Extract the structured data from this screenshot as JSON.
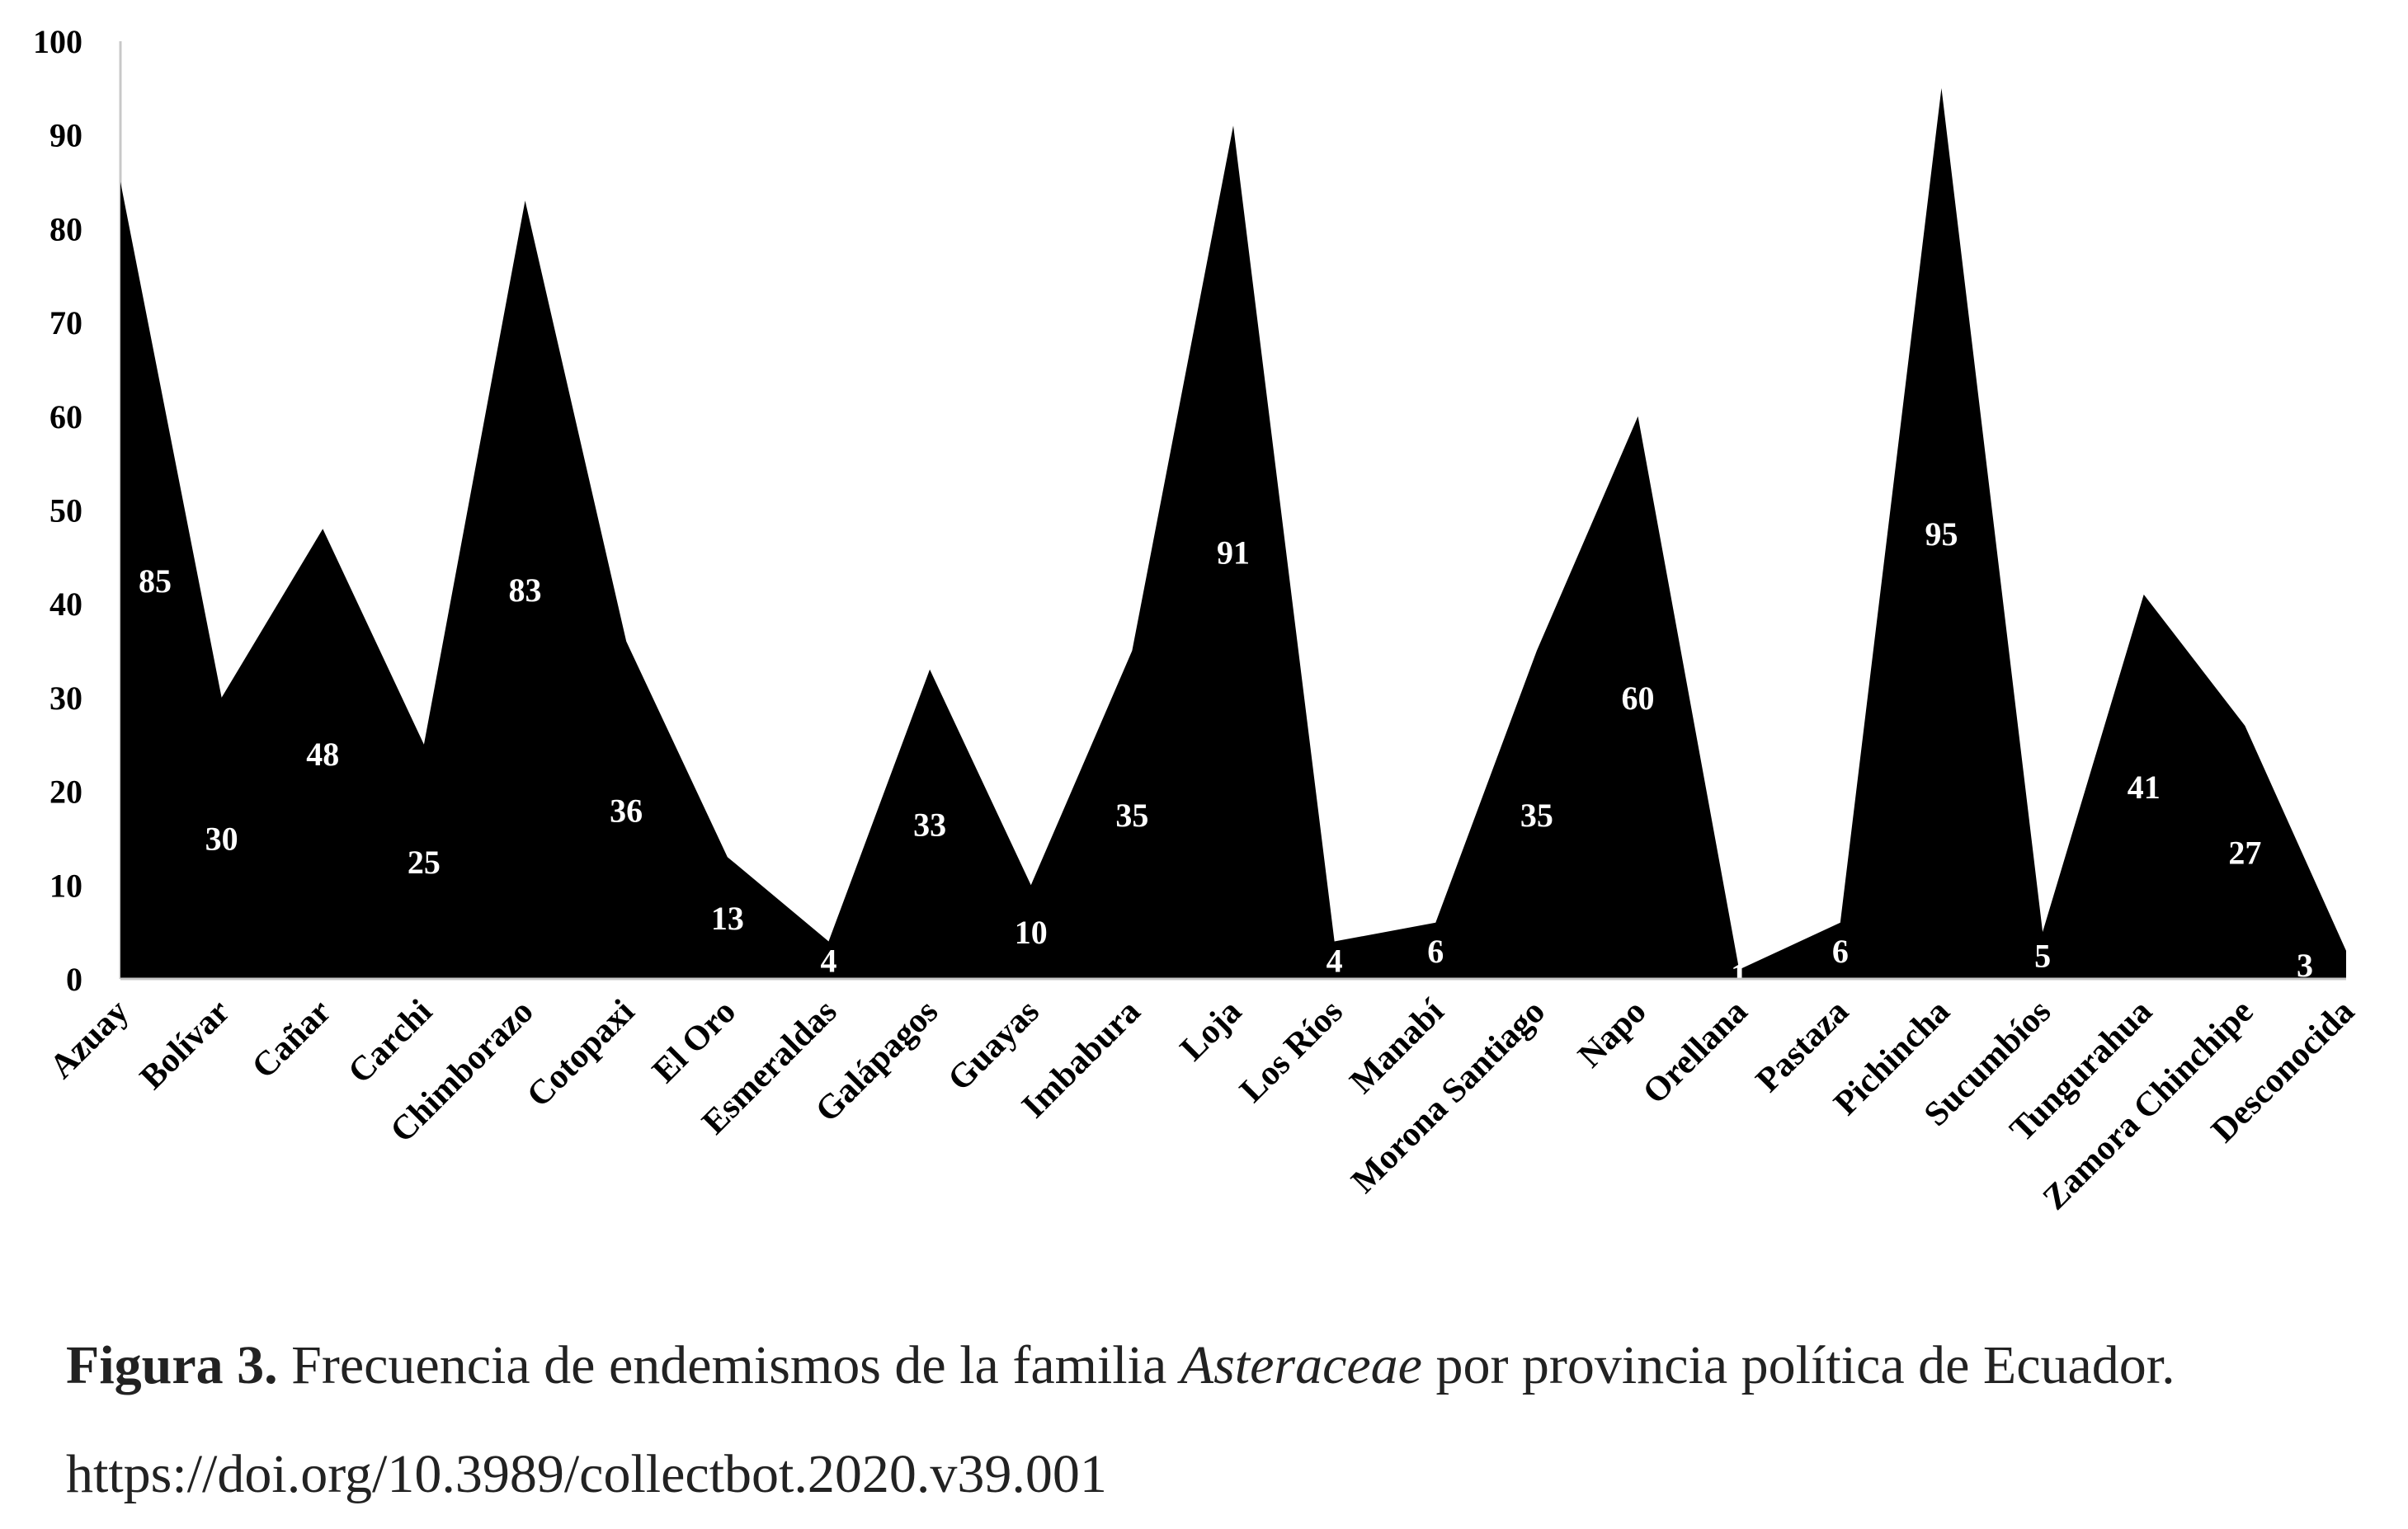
{
  "chart_data": {
    "type": "area",
    "categories": [
      "Azuay",
      "Bolívar",
      "Cañar",
      "Carchi",
      "Chimborazo",
      "Cotopaxi",
      "El Oro",
      "Esmeraldas",
      "Galápagos",
      "Guayas",
      "Imbabura",
      "Loja",
      "Los Ríos",
      "Manabí",
      "Morona Santiago",
      "Napo",
      "Orellana",
      "Pastaza",
      "Pichincha",
      "Sucumbíos",
      "Tungurahua",
      "Zamora Chinchipe",
      "Desconocida"
    ],
    "values": [
      85,
      30,
      48,
      25,
      83,
      36,
      13,
      4,
      33,
      10,
      35,
      91,
      4,
      6,
      35,
      60,
      1,
      6,
      95,
      5,
      41,
      27,
      3
    ],
    "data_labels": [
      "85",
      "30",
      "48",
      "25",
      "83",
      "36",
      "13",
      "4",
      "33",
      "10",
      "35",
      "91",
      "4",
      "6",
      "35",
      "60",
      "1",
      "6",
      "95",
      "5",
      "41",
      "27",
      "3"
    ],
    "ylim": [
      0,
      100
    ],
    "yticks": [
      "0",
      "10",
      "20",
      "30",
      "40",
      "50",
      "60",
      "70",
      "80",
      "90",
      "100"
    ],
    "fill_color": "#000000",
    "label_color": "#ffffff",
    "grid": false,
    "legend": "none"
  },
  "caption": {
    "label": "Figura 3.",
    "text_before": " Frecuencia de endemismos de la familia ",
    "italic": "Asteraceae",
    "text_after": " por provincia política de Ecuador.",
    "doi": "https://doi.org/10.3989/collectbot.2020.v39.001"
  }
}
